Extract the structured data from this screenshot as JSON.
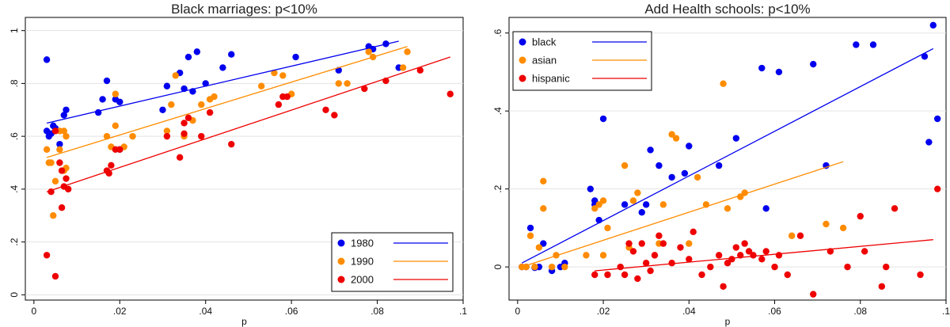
{
  "chart_data": [
    {
      "type": "scatter",
      "title": "Black marriages: p<10%",
      "xlabel": "p",
      "ylabel": "",
      "xlim": [
        0,
        0.1
      ],
      "ylim": [
        0,
        1
      ],
      "xticks": [
        "0",
        ".02",
        ".04",
        ".06",
        ".08",
        ".1"
      ],
      "yticks": [
        "0",
        ".2",
        ".4",
        ".6",
        ".8",
        "1"
      ],
      "legend_position": "bottom-right",
      "series": [
        {
          "name": "1980",
          "color": "#0000ee",
          "points": [
            [
              0.003,
              0.89
            ],
            [
              0.003,
              0.62
            ],
            [
              0.0035,
              0.6
            ],
            [
              0.004,
              0.61
            ],
            [
              0.0045,
              0.64
            ],
            [
              0.005,
              0.63
            ],
            [
              0.006,
              0.57
            ],
            [
              0.007,
              0.68
            ],
            [
              0.0075,
              0.7
            ],
            [
              0.015,
              0.69
            ],
            [
              0.016,
              0.74
            ],
            [
              0.017,
              0.81
            ],
            [
              0.019,
              0.74
            ],
            [
              0.02,
              0.73
            ],
            [
              0.02,
              0.55
            ],
            [
              0.03,
              0.7
            ],
            [
              0.031,
              0.79
            ],
            [
              0.034,
              0.84
            ],
            [
              0.035,
              0.78
            ],
            [
              0.036,
              0.9
            ],
            [
              0.037,
              0.77
            ],
            [
              0.038,
              0.92
            ],
            [
              0.04,
              0.8
            ],
            [
              0.044,
              0.86
            ],
            [
              0.046,
              0.91
            ],
            [
              0.061,
              0.9
            ],
            [
              0.071,
              0.85
            ],
            [
              0.078,
              0.94
            ],
            [
              0.079,
              0.93
            ],
            [
              0.082,
              0.95
            ],
            [
              0.085,
              0.86
            ]
          ],
          "fit": [
            [
              0.003,
              0.65
            ],
            [
              0.085,
              0.96
            ]
          ]
        },
        {
          "name": "1990",
          "color": "#ff8c00",
          "points": [
            [
              0.003,
              0.55
            ],
            [
              0.0035,
              0.5
            ],
            [
              0.004,
              0.5
            ],
            [
              0.0045,
              0.3
            ],
            [
              0.005,
              0.43
            ],
            [
              0.006,
              0.62
            ],
            [
              0.006,
              0.55
            ],
            [
              0.007,
              0.47
            ],
            [
              0.0075,
              0.48
            ],
            [
              0.0075,
              0.6
            ],
            [
              0.007,
              0.62
            ],
            [
              0.017,
              0.6
            ],
            [
              0.018,
              0.56
            ],
            [
              0.019,
              0.64
            ],
            [
              0.019,
              0.76
            ],
            [
              0.021,
              0.56
            ],
            [
              0.023,
              0.6
            ],
            [
              0.031,
              0.62
            ],
            [
              0.032,
              0.72
            ],
            [
              0.033,
              0.83
            ],
            [
              0.035,
              0.6
            ],
            [
              0.037,
              0.66
            ],
            [
              0.039,
              0.72
            ],
            [
              0.041,
              0.74
            ],
            [
              0.042,
              0.75
            ],
            [
              0.053,
              0.79
            ],
            [
              0.056,
              0.84
            ],
            [
              0.058,
              0.83
            ],
            [
              0.06,
              0.76
            ],
            [
              0.071,
              0.8
            ],
            [
              0.073,
              0.8
            ],
            [
              0.078,
              0.92
            ],
            [
              0.079,
              0.9
            ],
            [
              0.086,
              0.86
            ],
            [
              0.087,
              0.92
            ]
          ],
          "fit": [
            [
              0.003,
              0.52
            ],
            [
              0.087,
              0.94
            ]
          ]
        },
        {
          "name": "2000",
          "color": "#ee0000",
          "points": [
            [
              0.003,
              0.15
            ],
            [
              0.004,
              0.39
            ],
            [
              0.005,
              0.62
            ],
            [
              0.005,
              0.07
            ],
            [
              0.006,
              0.5
            ],
            [
              0.0065,
              0.33
            ],
            [
              0.0065,
              0.47
            ],
            [
              0.007,
              0.41
            ],
            [
              0.0075,
              0.44
            ],
            [
              0.008,
              0.4
            ],
            [
              0.017,
              0.47
            ],
            [
              0.0175,
              0.46
            ],
            [
              0.018,
              0.49
            ],
            [
              0.019,
              0.55
            ],
            [
              0.02,
              0.55
            ],
            [
              0.031,
              0.6
            ],
            [
              0.034,
              0.52
            ],
            [
              0.035,
              0.61
            ],
            [
              0.035,
              0.65
            ],
            [
              0.036,
              0.67
            ],
            [
              0.039,
              0.6
            ],
            [
              0.041,
              0.69
            ],
            [
              0.046,
              0.57
            ],
            [
              0.057,
              0.72
            ],
            [
              0.058,
              0.75
            ],
            [
              0.059,
              0.75
            ],
            [
              0.068,
              0.7
            ],
            [
              0.07,
              0.68
            ],
            [
              0.077,
              0.78
            ],
            [
              0.082,
              0.81
            ],
            [
              0.09,
              0.85
            ],
            [
              0.097,
              0.76
            ]
          ],
          "fit": [
            [
              0.003,
              0.39
            ],
            [
              0.097,
              0.9
            ]
          ]
        }
      ]
    },
    {
      "type": "scatter",
      "title": "Add Health schools: p<10%",
      "xlabel": "p",
      "ylabel": "",
      "xlim": [
        0,
        0.1
      ],
      "ylim": [
        -0.08,
        0.62
      ],
      "xticks": [
        "0",
        ".02",
        ".04",
        ".06",
        ".08",
        ".1"
      ],
      "yticks": [
        "0",
        ".2",
        ".4",
        ".6"
      ],
      "legend_position": "top-left",
      "series": [
        {
          "name": "black",
          "color": "#0000ee",
          "points": [
            [
              0.001,
              0.0
            ],
            [
              0.002,
              0.0
            ],
            [
              0.003,
              0.1
            ],
            [
              0.004,
              -0.002
            ],
            [
              0.005,
              0.0
            ],
            [
              0.006,
              0.06
            ],
            [
              0.008,
              -0.01
            ],
            [
              0.01,
              0.0
            ],
            [
              0.011,
              0.01
            ],
            [
              0.017,
              0.2
            ],
            [
              0.018,
              0.16
            ],
            [
              0.018,
              0.17
            ],
            [
              0.019,
              0.12
            ],
            [
              0.02,
              0.38
            ],
            [
              0.025,
              0.16
            ],
            [
              0.029,
              0.14
            ],
            [
              0.03,
              0.16
            ],
            [
              0.031,
              0.3
            ],
            [
              0.033,
              0.26
            ],
            [
              0.036,
              0.23
            ],
            [
              0.039,
              0.24
            ],
            [
              0.04,
              0.31
            ],
            [
              0.047,
              0.26
            ],
            [
              0.051,
              0.33
            ],
            [
              0.057,
              0.51
            ],
            [
              0.058,
              0.15
            ],
            [
              0.061,
              0.5
            ],
            [
              0.069,
              0.52
            ],
            [
              0.072,
              0.26
            ],
            [
              0.079,
              0.57
            ],
            [
              0.083,
              0.57
            ],
            [
              0.095,
              0.54
            ],
            [
              0.096,
              0.32
            ],
            [
              0.097,
              0.62
            ],
            [
              0.098,
              0.38
            ]
          ],
          "fit": [
            [
              0.001,
              0.01
            ],
            [
              0.097,
              0.56
            ]
          ]
        },
        {
          "name": "asian",
          "color": "#ff8c00",
          "points": [
            [
              0.001,
              0.0
            ],
            [
              0.002,
              0.0
            ],
            [
              0.003,
              0.08
            ],
            [
              0.004,
              0.0
            ],
            [
              0.005,
              0.05
            ],
            [
              0.006,
              0.15
            ],
            [
              0.006,
              0.22
            ],
            [
              0.008,
              0.0
            ],
            [
              0.009,
              0.03
            ],
            [
              0.011,
              0.0
            ],
            [
              0.016,
              0.03
            ],
            [
              0.018,
              0.15
            ],
            [
              0.019,
              0.16
            ],
            [
              0.02,
              0.17
            ],
            [
              0.02,
              0.03
            ],
            [
              0.021,
              0.1
            ],
            [
              0.025,
              0.26
            ],
            [
              0.026,
              0.05
            ],
            [
              0.027,
              0.17
            ],
            [
              0.028,
              0.19
            ],
            [
              0.033,
              0.06
            ],
            [
              0.034,
              0.16
            ],
            [
              0.036,
              0.34
            ],
            [
              0.037,
              0.33
            ],
            [
              0.04,
              0.06
            ],
            [
              0.042,
              0.23
            ],
            [
              0.044,
              0.16
            ],
            [
              0.048,
              0.47
            ],
            [
              0.049,
              0.15
            ],
            [
              0.052,
              0.18
            ],
            [
              0.053,
              0.19
            ],
            [
              0.064,
              0.08
            ],
            [
              0.072,
              0.11
            ],
            [
              0.076,
              0.1
            ]
          ],
          "fit": [
            [
              0.001,
              0.0
            ],
            [
              0.076,
              0.27
            ]
          ]
        },
        {
          "name": "hispanic",
          "color": "#ee0000",
          "points": [
            [
              0.018,
              -0.02
            ],
            [
              0.021,
              -0.02
            ],
            [
              0.024,
              0.0
            ],
            [
              0.025,
              -0.02
            ],
            [
              0.026,
              0.06
            ],
            [
              0.027,
              0.04
            ],
            [
              0.028,
              -0.03
            ],
            [
              0.029,
              0.06
            ],
            [
              0.03,
              0.01
            ],
            [
              0.031,
              -0.01
            ],
            [
              0.032,
              0.03
            ],
            [
              0.033,
              0.08
            ],
            [
              0.034,
              0.06
            ],
            [
              0.036,
              0.01
            ],
            [
              0.038,
              0.05
            ],
            [
              0.04,
              0.02
            ],
            [
              0.041,
              0.09
            ],
            [
              0.043,
              -0.02
            ],
            [
              0.045,
              0.0
            ],
            [
              0.047,
              0.03
            ],
            [
              0.048,
              -0.05
            ],
            [
              0.049,
              0.01
            ],
            [
              0.05,
              0.02
            ],
            [
              0.051,
              0.05
            ],
            [
              0.052,
              0.03
            ],
            [
              0.053,
              0.06
            ],
            [
              0.054,
              0.04
            ],
            [
              0.055,
              0.03
            ],
            [
              0.057,
              0.02
            ],
            [
              0.058,
              0.04
            ],
            [
              0.06,
              0.0
            ],
            [
              0.061,
              0.03
            ],
            [
              0.063,
              -0.02
            ],
            [
              0.066,
              0.08
            ],
            [
              0.069,
              -0.07
            ],
            [
              0.073,
              0.04
            ],
            [
              0.077,
              0.0
            ],
            [
              0.08,
              0.13
            ],
            [
              0.081,
              0.04
            ],
            [
              0.085,
              -0.05
            ],
            [
              0.086,
              0.0
            ],
            [
              0.088,
              0.15
            ],
            [
              0.094,
              -0.02
            ],
            [
              0.098,
              0.2
            ]
          ],
          "fit": [
            [
              0.018,
              -0.01
            ],
            [
              0.097,
              0.07
            ]
          ]
        }
      ]
    }
  ]
}
